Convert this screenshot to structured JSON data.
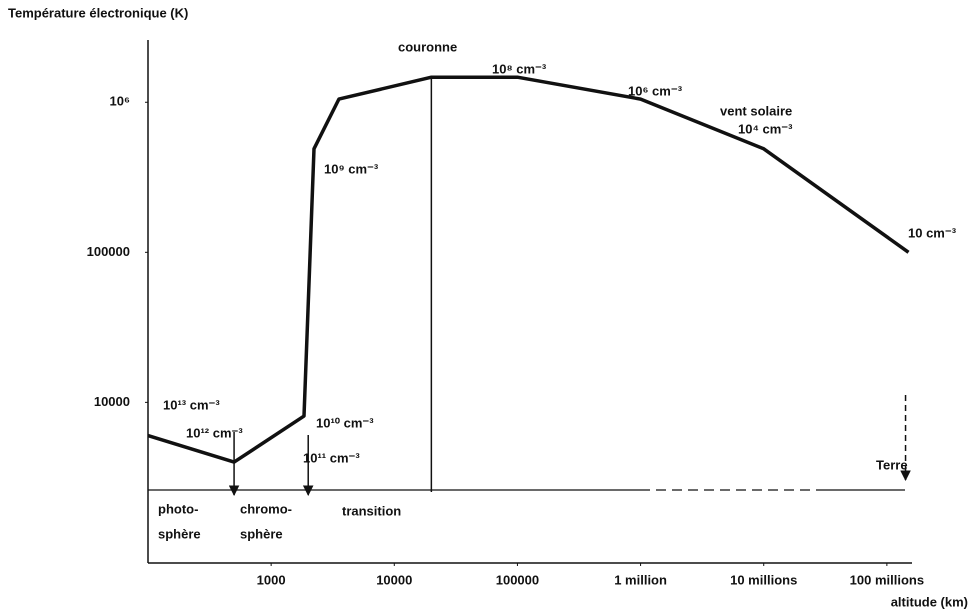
{
  "chart_data": {
    "type": "line",
    "y_label": "Température électronique  (K)",
    "x_label": "altitude (km)",
    "x": [
      100,
      500,
      1850,
      2050,
      2230,
      3550,
      20000,
      100000,
      1000000,
      10000000,
      150000000
    ],
    "series": [
      {
        "name": "Température électronique",
        "color": "#111111",
        "values": [
          6000,
          4000,
          8100,
          76000,
          490000,
          1050000,
          1470000,
          1470000,
          1050000,
          490000,
          100000
        ]
      }
    ],
    "log_x": true,
    "log_y": true,
    "xlim": [
      100,
      160000000
    ],
    "ylim": [
      850,
      2600000
    ],
    "xticks": [
      1000,
      10000,
      100000,
      {
        "value": 1000000,
        "label": "1 million"
      },
      {
        "value": 10000000,
        "label": "10 millions"
      },
      {
        "value": 100000000,
        "label": "100 millions"
      }
    ],
    "yticks": [
      10000,
      100000,
      {
        "value": 1000000,
        "label": "10⁶"
      }
    ],
    "grid": false,
    "boundaries": [
      500,
      2000,
      20000,
      150000000
    ],
    "regions": [
      "photo-",
      "sphère",
      "chromo-",
      "sphère",
      "transition",
      "couronne",
      "vent solaire",
      "Terre"
    ],
    "densities": [
      "10¹³ cm⁻³",
      "10¹² cm⁻³",
      "10¹⁰ cm⁻³",
      "10¹¹ cm⁻³",
      "10⁹ cm⁻³",
      "10⁸ cm⁻³",
      "10⁶ cm⁻³",
      "10⁴ cm⁻³",
      "10 cm⁻³"
    ]
  }
}
